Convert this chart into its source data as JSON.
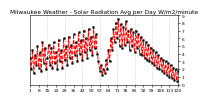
{
  "title": "Milwaukee Weather - Solar Radiation Avg per Day W/m2/minute",
  "x_values": [
    1,
    2,
    3,
    4,
    5,
    6,
    7,
    8,
    9,
    10,
    11,
    12,
    13,
    14,
    15,
    16,
    17,
    18,
    19,
    20,
    21,
    22,
    23,
    24,
    25,
    26,
    27,
    28,
    29,
    30,
    31,
    32,
    33,
    34,
    35,
    36,
    37,
    38,
    39,
    40,
    41,
    42,
    43,
    44,
    45,
    46,
    47,
    48,
    49,
    50,
    51,
    52,
    53,
    54,
    55,
    56,
    57,
    58,
    59,
    60,
    61,
    62,
    63,
    64,
    65,
    66,
    67,
    68,
    69,
    70,
    71,
    72,
    73,
    74,
    75,
    76,
    77,
    78,
    79,
    80,
    81,
    82,
    83,
    84,
    85,
    86,
    87,
    88,
    89,
    90,
    91,
    92,
    93,
    94,
    95,
    96,
    97,
    98,
    99,
    100,
    101,
    102,
    103,
    104,
    105,
    106,
    107,
    108,
    109,
    110,
    111,
    112,
    113,
    114,
    115,
    116,
    117,
    118,
    119,
    120
  ],
  "y_values": [
    3.5,
    2.0,
    4.5,
    1.5,
    3.8,
    2.5,
    5.0,
    2.2,
    4.2,
    1.8,
    5.5,
    2.8,
    4.8,
    2.0,
    3.5,
    5.2,
    2.5,
    4.8,
    2.2,
    5.5,
    2.8,
    4.2,
    2.0,
    5.8,
    3.0,
    4.5,
    2.2,
    6.0,
    3.2,
    5.0,
    2.5,
    6.2,
    3.5,
    5.2,
    2.8,
    6.5,
    3.8,
    5.5,
    3.0,
    6.8,
    4.0,
    5.8,
    3.2,
    7.0,
    4.2,
    6.0,
    3.5,
    7.2,
    4.5,
    6.2,
    3.8,
    7.5,
    4.8,
    6.5,
    4.0,
    3.0,
    1.8,
    2.5,
    1.2,
    2.0,
    1.5,
    3.2,
    2.0,
    4.5,
    3.0,
    6.0,
    4.5,
    7.2,
    5.5,
    8.0,
    6.0,
    8.5,
    5.0,
    7.8,
    4.8,
    7.5,
    5.2,
    8.2,
    5.5,
    7.0,
    4.5,
    7.2,
    5.0,
    6.8,
    4.2,
    7.0,
    4.8,
    6.5,
    4.0,
    6.2,
    3.8,
    5.8,
    3.5,
    5.5,
    3.2,
    5.2,
    3.0,
    4.8,
    2.8,
    4.5,
    2.5,
    4.2,
    2.2,
    3.8,
    2.0,
    3.5,
    1.8,
    3.2,
    1.5,
    3.0,
    1.2,
    2.8,
    1.0,
    2.5,
    0.8,
    2.2,
    0.6,
    2.0,
    0.5,
    1.8
  ],
  "line_color": "#FF0000",
  "line_style": "--",
  "line_width": 0.7,
  "marker": "s",
  "marker_size": 1.2,
  "marker_color": "#000000",
  "background_color": "#ffffff",
  "grid_color": "#bbbbbb",
  "ylim": [
    0,
    9
  ],
  "xlim": [
    1,
    120
  ],
  "ytick_values": [
    0,
    1,
    2,
    3,
    4,
    5,
    6,
    7,
    8,
    9
  ],
  "ytick_labels": [
    "0",
    "1",
    "2",
    "3",
    "4",
    "5",
    "6",
    "7",
    "8",
    "9"
  ],
  "title_fontsize": 4.2,
  "tick_fontsize": 3.2,
  "vgrid_positions": [
    15,
    29,
    43,
    57,
    71,
    85,
    99,
    113
  ],
  "x_tick_step": 7
}
